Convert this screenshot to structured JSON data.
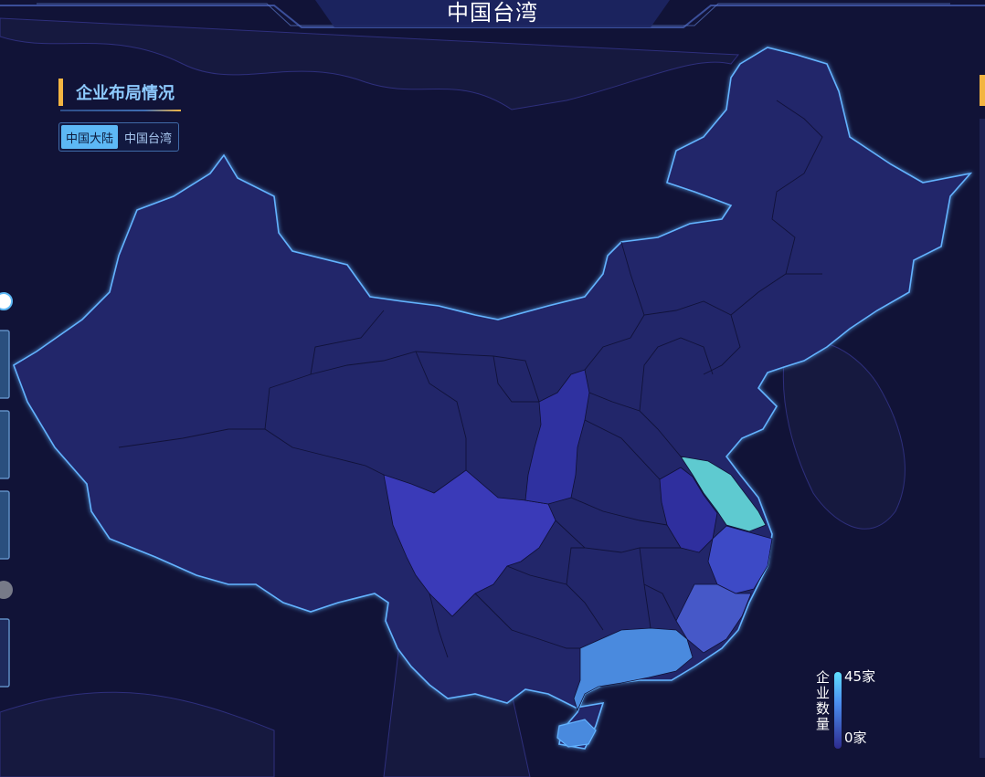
{
  "header": {
    "title": "中国台湾"
  },
  "panel": {
    "title": "企业布局情况"
  },
  "toggle": {
    "options": [
      {
        "label": "中国大陆",
        "active": true
      },
      {
        "label": "中国台湾",
        "active": false
      }
    ]
  },
  "legend": {
    "title": "企业数量",
    "max_label": "45家",
    "min_label": "0家",
    "color_high": "#5fe0ff",
    "color_low": "#2d2b8f"
  },
  "map": {
    "region": "China mainland provinces",
    "colors": {
      "background": "#111337",
      "land": "#23286a",
      "outline": "#5aa6ff",
      "jiangsu": "#5ecad0",
      "sichuan": "#3a3ab8",
      "shaanxi": "#2f31a0",
      "anhui": "#2f2f9e",
      "zhejiang": "#3d4ac6",
      "fujian": "#4658c8",
      "guangdong": "#4a8ade"
    },
    "highlighted_regions": [
      {
        "name": "江苏",
        "level": "high"
      },
      {
        "name": "广东",
        "level": "medium-high"
      },
      {
        "name": "福建",
        "level": "medium"
      },
      {
        "name": "浙江",
        "level": "medium"
      },
      {
        "name": "四川",
        "level": "medium"
      },
      {
        "name": "陕西",
        "level": "low"
      },
      {
        "name": "安徽",
        "level": "low"
      }
    ]
  }
}
